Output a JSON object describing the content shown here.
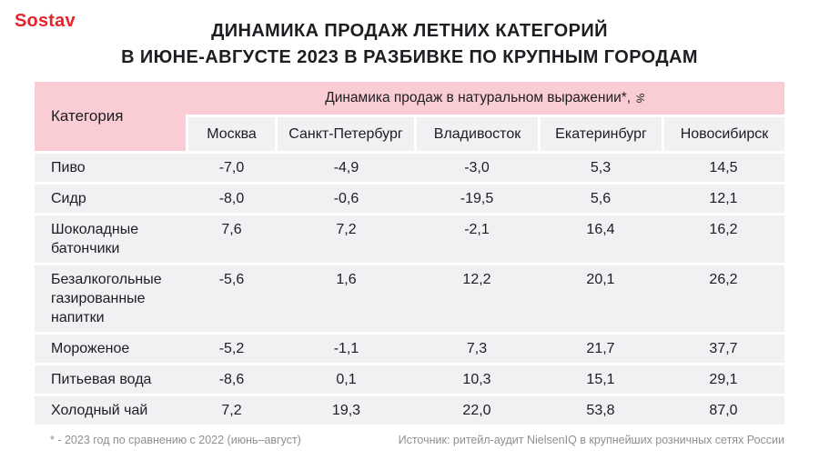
{
  "logo": "Sostav",
  "title_line1": "ДИНАМИКА ПРОДАЖ ЛЕТНИХ КАТЕГОРИЙ",
  "title_line2": "В ИЮНЕ-АВГУСТЕ 2023 В РАЗБИВКЕ ПО КРУПНЫМ ГОРОДАМ",
  "table": {
    "category_header": "Категория",
    "group_header": "Динамика продаж в натуральном выражении*,",
    "group_header_unit": "%",
    "columns": [
      "Москва",
      "Санкт-Петербург",
      "Владивосток",
      "Екатеринбург",
      "Новосибирск"
    ],
    "rows": [
      {
        "category": "Пиво",
        "values": [
          "-7,0",
          "-4,9",
          "-3,0",
          "5,3",
          "14,5"
        ]
      },
      {
        "category": "Сидр",
        "values": [
          "-8,0",
          "-0,6",
          "-19,5",
          "5,6",
          "12,1"
        ]
      },
      {
        "category": "Шоколадные батончики",
        "values": [
          "7,6",
          "7,2",
          "-2,1",
          "16,4",
          "16,2"
        ]
      },
      {
        "category": "Безалкогольные газированные напитки",
        "values": [
          "-5,6",
          "1,6",
          "12,2",
          "20,1",
          "26,2"
        ]
      },
      {
        "category": "Мороженое",
        "values": [
          "-5,2",
          "-1,1",
          "7,3",
          "21,7",
          "37,7"
        ]
      },
      {
        "category": "Питьевая вода",
        "values": [
          "-8,6",
          "0,1",
          "10,3",
          "15,1",
          "29,1"
        ]
      },
      {
        "category": "Холодный чай",
        "values": [
          "7,2",
          "19,3",
          "22,0",
          "53,8",
          "87,0"
        ]
      }
    ]
  },
  "footnote_left": "* - 2023 год по сравнению с 2022 (июнь–август)",
  "footnote_right": "Источник: ритейл-аудит NielsenIQ в крупнейших розничных сетях России",
  "colors": {
    "brand_red": "#e8242a",
    "header_pink": "#f9cdd3",
    "row_gray": "#f1f1f3"
  },
  "chart_data": {
    "type": "table",
    "title": "Динамика продаж летних категорий в июне-августе 2023 в разбивке по крупным городам",
    "unit": "%",
    "note": "2023 год по сравнению с 2022 (июнь–август)",
    "source": "ритейл-аудит NielsenIQ в крупнейших розничных сетях России",
    "categories": [
      "Пиво",
      "Сидр",
      "Шоколадные батончики",
      "Безалкогольные газированные напитки",
      "Мороженое",
      "Питьевая вода",
      "Холодный чай"
    ],
    "series": [
      {
        "name": "Москва",
        "values": [
          -7.0,
          -8.0,
          7.6,
          -5.6,
          -5.2,
          -8.6,
          7.2
        ]
      },
      {
        "name": "Санкт-Петербург",
        "values": [
          -4.9,
          -0.6,
          7.2,
          1.6,
          -1.1,
          0.1,
          19.3
        ]
      },
      {
        "name": "Владивосток",
        "values": [
          -3.0,
          -19.5,
          -2.1,
          12.2,
          7.3,
          10.3,
          22.0
        ]
      },
      {
        "name": "Екатеринбург",
        "values": [
          5.3,
          5.6,
          16.4,
          20.1,
          21.7,
          15.1,
          53.8
        ]
      },
      {
        "name": "Новосибирск",
        "values": [
          14.5,
          12.1,
          16.2,
          26.2,
          37.7,
          29.1,
          87.0
        ]
      }
    ]
  }
}
